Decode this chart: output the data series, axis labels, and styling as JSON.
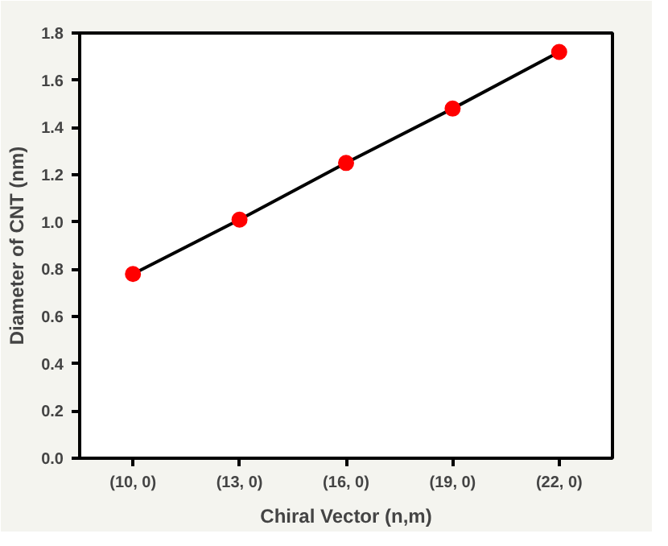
{
  "chart_data": {
    "type": "line",
    "xlabel": "Chiral Vector (n,m)",
    "ylabel": "Diameter of CNT (nm)",
    "categories": [
      "(10, 0)",
      "(13, 0)",
      "(16, 0)",
      "(19, 0)",
      "(22, 0)"
    ],
    "series": [
      {
        "color": "#000000",
        "colors": [
          "#ff0000",
          "#ff0000",
          "#ff0000",
          "#ff0000",
          "#ff0000"
        ],
        "values": [
          0.78,
          1.01,
          1.25,
          1.48,
          1.72
        ]
      }
    ],
    "ylim": [
      0,
      1.8
    ],
    "yticks": [
      {
        "value": 0,
        "label": "0.0"
      },
      0.2,
      0.4,
      0.6,
      0.8,
      {
        "value": 1,
        "label": "1.0"
      },
      1.2,
      1.4,
      1.6,
      1.8
    ],
    "marker": "circle",
    "line_style": "solid",
    "grid": false
  }
}
